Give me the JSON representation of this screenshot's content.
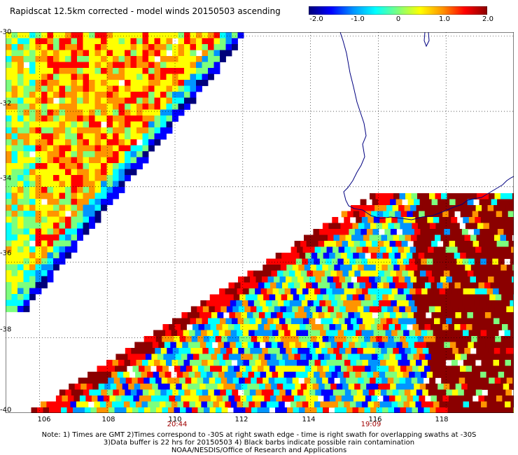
{
  "title": "Rapidscat 12.5km corrected - model winds 20150503 ascending",
  "colorbar": {
    "ticks": [
      "-2.0",
      "-1.0",
      "0",
      "1.0",
      "2.0"
    ],
    "range": [
      -2.0,
      2.0
    ],
    "colors": [
      "#00007a",
      "#0000ff",
      "#0094ff",
      "#00ffff",
      "#7dff7d",
      "#ffff00",
      "#ff9400",
      "#ff0000",
      "#8b0000"
    ]
  },
  "map": {
    "lon_ticks": [
      "106",
      "108",
      "110",
      "112",
      "114",
      "116",
      "118"
    ],
    "lat_ticks": [
      "-30",
      "-32",
      "-34",
      "-36",
      "-38",
      "-40"
    ],
    "lon_range": [
      105,
      120
    ],
    "lat_range": [
      -40,
      -29.9
    ],
    "coastline_color": "#000080",
    "grid": "dotted"
  },
  "swath_times": [
    "20:44",
    "19:09"
  ],
  "notes": [
    "Note: 1) Times are GMT 2)Times correspond to -30S at right swath edge - time is right swath for overlapping swaths at -30S",
    "3)Data buffer is 22 hrs for 20150503 4) Black barbs indicate possible rain contamination",
    "NOAA/NESDIS/Office of Research and Applications"
  ]
}
